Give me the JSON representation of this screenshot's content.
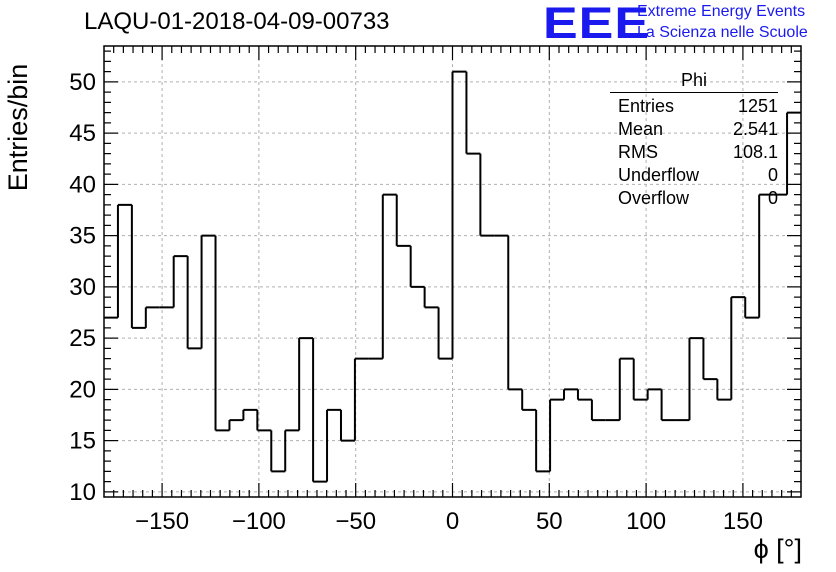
{
  "header": {
    "title": "LAQU-01-2018-04-09-00733",
    "logo_text": "EEE",
    "brand_line1": "Extreme Energy Events",
    "brand_line2": "La Scienza nelle Scuole"
  },
  "stats_box": {
    "title": "Phi",
    "rows": [
      {
        "label": "Entries",
        "value": "1251"
      },
      {
        "label": "Mean",
        "value": "2.541"
      },
      {
        "label": "RMS",
        "value": "108.1"
      },
      {
        "label": "Underflow",
        "value": "0"
      },
      {
        "label": "Overflow",
        "value": "0"
      }
    ]
  },
  "chart_data": {
    "type": "bar",
    "title": "LAQU-01-2018-04-09-00733",
    "xlabel": "ϕ [°]",
    "ylabel": "Entries/bin",
    "xlim": [
      -180,
      180
    ],
    "ylim": [
      9.5,
      53.5
    ],
    "bin_width": 7.2,
    "grid": true,
    "x_ticks": [
      -150,
      -100,
      -50,
      0,
      50,
      100,
      150
    ],
    "y_ticks": [
      10,
      15,
      20,
      25,
      30,
      35,
      40,
      45,
      50
    ],
    "values": [
      27,
      38,
      26,
      28,
      28,
      33,
      24,
      35,
      16,
      17,
      18,
      16,
      12,
      16,
      25,
      11,
      18,
      15,
      23,
      23,
      39,
      34,
      30,
      28,
      23,
      51,
      43,
      35,
      35,
      20,
      18,
      12,
      19,
      20,
      19,
      17,
      17,
      23,
      19,
      20,
      17,
      17,
      25,
      21,
      19,
      29,
      27,
      39,
      39,
      47
    ]
  },
  "colors": {
    "logo": "#1a1aee",
    "line": "#000000",
    "grid": "#b0b0b0"
  }
}
